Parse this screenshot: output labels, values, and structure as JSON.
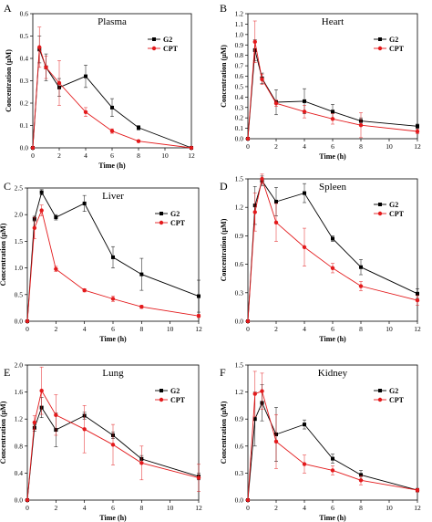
{
  "chart_data": [
    {
      "type": "line",
      "letter": "A",
      "title": "Plasma",
      "xlabel": "Time (h)",
      "ylabel": "Concentration (μM)",
      "xlim": [
        0,
        12
      ],
      "ylim": [
        0,
        0.6
      ],
      "xticks": [
        "0",
        "2",
        "4",
        "6",
        "8",
        "10",
        "12"
      ],
      "yticks": [
        "0.0",
        "0.1",
        "0.2",
        "0.3",
        "0.4",
        "0.5",
        "0.6"
      ],
      "legend_position": "top-right",
      "series": [
        {
          "name": "G2",
          "color": "#000000",
          "marker": "square",
          "x": [
            0,
            0.5,
            1,
            2,
            4,
            6,
            8,
            12
          ],
          "y": [
            0,
            0.44,
            0.36,
            0.27,
            0.32,
            0.18,
            0.09,
            0
          ],
          "err": [
            0,
            0.06,
            0.06,
            0.04,
            0.05,
            0.04,
            0.01,
            0
          ]
        },
        {
          "name": "CPT",
          "color": "#e31a1c",
          "marker": "circle",
          "x": [
            0,
            0.5,
            1,
            2,
            4,
            6,
            8,
            12
          ],
          "y": [
            0,
            0.45,
            0.36,
            0.29,
            0.16,
            0.075,
            0.03,
            0
          ],
          "err": [
            0,
            0.09,
            0.05,
            0.1,
            0.02,
            0.01,
            0.005,
            0
          ]
        }
      ]
    },
    {
      "type": "line",
      "letter": "B",
      "title": "Heart",
      "xlabel": "Time (h)",
      "ylabel": "Concentration (μM)",
      "xlim": [
        0,
        12
      ],
      "ylim": [
        0,
        1.2
      ],
      "xticks": [
        "0",
        "2",
        "4",
        "6",
        "8",
        "10",
        "12"
      ],
      "yticks": [
        "0.0",
        "0.1",
        "0.2",
        "0.3",
        "0.4",
        "0.5",
        "0.6",
        "0.7",
        "0.8",
        "0.9",
        "1.0",
        "1.1",
        "1.2"
      ],
      "legend_position": "top-right",
      "series": [
        {
          "name": "G2",
          "color": "#000000",
          "marker": "square",
          "x": [
            0,
            0.5,
            1,
            2,
            4,
            6,
            8,
            12
          ],
          "y": [
            0,
            0.85,
            0.58,
            0.35,
            0.36,
            0.26,
            0.17,
            0.12
          ],
          "err": [
            0,
            0.1,
            0.05,
            0.12,
            0.12,
            0.07,
            0.03,
            0.02
          ]
        },
        {
          "name": "CPT",
          "color": "#e31a1c",
          "marker": "circle",
          "x": [
            0,
            0.5,
            1,
            2,
            4,
            6,
            8,
            12
          ],
          "y": [
            0,
            0.93,
            0.57,
            0.34,
            0.26,
            0.19,
            0.13,
            0.07
          ],
          "err": [
            0,
            0.2,
            0.05,
            0.03,
            0.06,
            0.05,
            0.12,
            0.02
          ]
        }
      ]
    },
    {
      "type": "line",
      "letter": "C",
      "title": "Liver",
      "xlabel": "Time (h)",
      "ylabel": "Concentration (μM)",
      "xlim": [
        0,
        12
      ],
      "ylim": [
        0,
        2.5
      ],
      "xticks": [
        "0",
        "2",
        "4",
        "6",
        "8",
        "10",
        "12"
      ],
      "yticks": [
        "0.0",
        "0.5",
        "1.0",
        "1.5",
        "2.0",
        "2.5"
      ],
      "legend_position": "top-right",
      "series": [
        {
          "name": "G2",
          "color": "#000000",
          "marker": "square",
          "x": [
            0,
            0.5,
            1,
            2,
            4,
            6,
            8,
            12
          ],
          "y": [
            0,
            1.92,
            2.42,
            1.95,
            2.21,
            1.2,
            0.88,
            0.47
          ],
          "err": [
            0,
            0.05,
            0.05,
            0.05,
            0.15,
            0.2,
            0.3,
            0.3
          ]
        },
        {
          "name": "CPT",
          "color": "#e31a1c",
          "marker": "circle",
          "x": [
            0,
            0.5,
            1,
            2,
            4,
            6,
            8,
            12
          ],
          "y": [
            0,
            1.75,
            2.08,
            0.98,
            0.58,
            0.42,
            0.27,
            0.1
          ],
          "err": [
            0,
            0.2,
            0.1,
            0.05,
            0.03,
            0.05,
            0.03,
            0.03
          ]
        }
      ]
    },
    {
      "type": "line",
      "letter": "D",
      "title": "Spleen",
      "xlabel": "Time (h)",
      "ylabel": "Concentration (μM)",
      "xlim": [
        0,
        12
      ],
      "ylim": [
        0,
        1.5
      ],
      "xticks": [
        "0",
        "2",
        "4",
        "6",
        "8",
        "10",
        "12"
      ],
      "yticks": [
        "0.0",
        "0.3",
        "0.6",
        "0.9",
        "1.2",
        "1.5"
      ],
      "legend_position": "top-right",
      "series": [
        {
          "name": "G2",
          "color": "#000000",
          "marker": "square",
          "x": [
            0,
            0.5,
            1,
            2,
            4,
            6,
            8,
            12
          ],
          "y": [
            0,
            1.22,
            1.48,
            1.26,
            1.35,
            0.87,
            0.57,
            0.29
          ],
          "err": [
            0,
            0.2,
            0.05,
            0.15,
            0.1,
            0.03,
            0.08,
            0.05
          ]
        },
        {
          "name": "CPT",
          "color": "#e31a1c",
          "marker": "circle",
          "x": [
            0,
            0.5,
            1,
            2,
            4,
            6,
            8,
            12
          ],
          "y": [
            0,
            1.15,
            1.5,
            1.04,
            0.78,
            0.56,
            0.37,
            0.22
          ],
          "err": [
            0,
            0.2,
            0.05,
            0.2,
            0.2,
            0.05,
            0.05,
            0.05
          ]
        }
      ]
    },
    {
      "type": "line",
      "letter": "E",
      "title": "Lung",
      "xlabel": "Time (h)",
      "ylabel": "Concentration (μM)",
      "xlim": [
        0,
        12
      ],
      "ylim": [
        0,
        2.0
      ],
      "xticks": [
        "0",
        "2",
        "4",
        "6",
        "8",
        "10",
        "12"
      ],
      "yticks": [
        "0.0",
        "0.4",
        "0.8",
        "1.2",
        "1.6",
        "2.0"
      ],
      "legend_position": "top-right",
      "series": [
        {
          "name": "G2",
          "color": "#000000",
          "marker": "square",
          "x": [
            0,
            0.5,
            1,
            2,
            4,
            6,
            8,
            12
          ],
          "y": [
            0,
            1.07,
            1.37,
            1.04,
            1.25,
            0.96,
            0.61,
            0.35
          ],
          "err": [
            0,
            0.05,
            0.15,
            0.25,
            0.05,
            0.05,
            0.05,
            0.05
          ]
        },
        {
          "name": "CPT",
          "color": "#e31a1c",
          "marker": "circle",
          "x": [
            0,
            0.5,
            1,
            2,
            4,
            6,
            8,
            12
          ],
          "y": [
            0,
            1.15,
            1.62,
            1.26,
            1.05,
            0.82,
            0.55,
            0.33
          ],
          "err": [
            0,
            0.1,
            0.35,
            0.3,
            0.35,
            0.3,
            0.25,
            0.2
          ]
        }
      ]
    },
    {
      "type": "line",
      "letter": "F",
      "title": "Kidney",
      "xlabel": "Time (h)",
      "ylabel": "Concentration (μM)",
      "xlim": [
        0,
        12
      ],
      "ylim": [
        0,
        1.5
      ],
      "xticks": [
        "0",
        "2",
        "4",
        "6",
        "8",
        "10",
        "12"
      ],
      "yticks": [
        "0.0",
        "0.3",
        "0.6",
        "0.9",
        "1.2",
        "1.5"
      ],
      "legend_position": "top-right",
      "series": [
        {
          "name": "G2",
          "color": "#000000",
          "marker": "square",
          "x": [
            0,
            0.5,
            1,
            2,
            4,
            6,
            8,
            12
          ],
          "y": [
            0,
            0.9,
            1.08,
            0.73,
            0.84,
            0.46,
            0.28,
            0.11
          ],
          "err": [
            0,
            0.3,
            0.2,
            0.3,
            0.05,
            0.05,
            0.05,
            0.02
          ]
        },
        {
          "name": "CPT",
          "color": "#e31a1c",
          "marker": "circle",
          "x": [
            0,
            0.5,
            1,
            2,
            4,
            6,
            8,
            12
          ],
          "y": [
            0,
            1.18,
            1.21,
            0.65,
            0.4,
            0.33,
            0.22,
            0.11
          ],
          "err": [
            0,
            0.25,
            0.2,
            0.3,
            0.1,
            0.05,
            0.05,
            0.02
          ]
        }
      ]
    }
  ]
}
